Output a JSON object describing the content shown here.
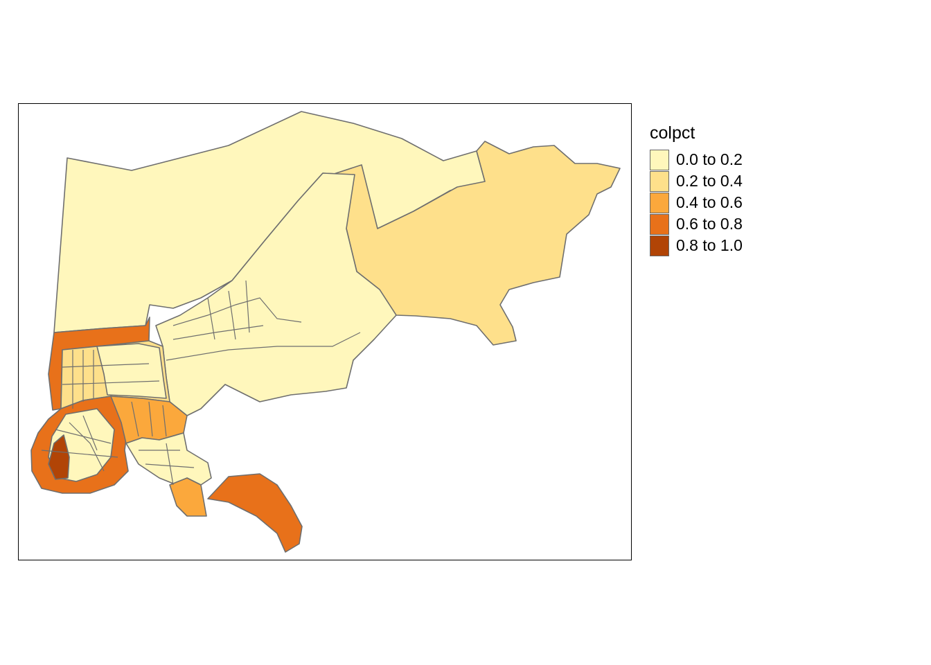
{
  "legend": {
    "title": "colpct",
    "items": [
      {
        "label": "0.0 to 0.2",
        "color": "#FFF7BC"
      },
      {
        "label": "0.2 to 0.4",
        "color": "#FEE08B"
      },
      {
        "label": "0.4 to 0.6",
        "color": "#FBA83C"
      },
      {
        "label": "0.6 to 0.8",
        "color": "#E8711A"
      },
      {
        "label": "0.8 to 1.0",
        "color": "#B14406"
      }
    ]
  },
  "map": {
    "border_color": "#6E6E6E",
    "background": "#FFFFFF"
  }
}
